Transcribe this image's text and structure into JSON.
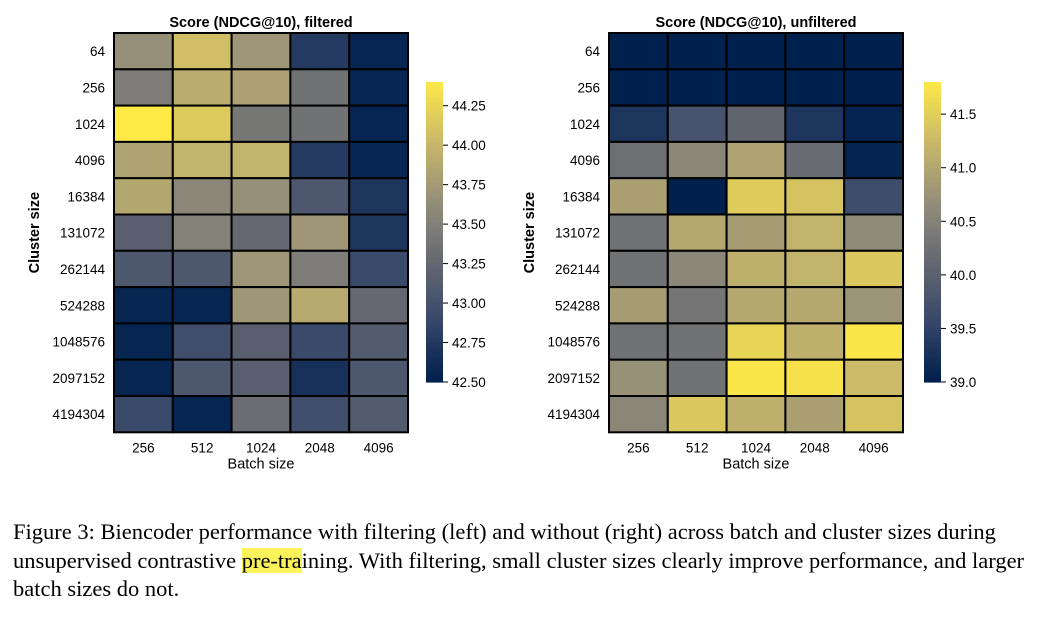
{
  "chart_data": [
    {
      "type": "heatmap",
      "title": "Score (NDCG@10), filtered",
      "xlabel": "Batch size",
      "ylabel": "Cluster size",
      "x_categories": [
        "256",
        "512",
        "1024",
        "2048",
        "4096"
      ],
      "y_categories": [
        "64",
        "256",
        "1024",
        "4096",
        "16384",
        "131072",
        "262144",
        "524288",
        "1048576",
        "2097152",
        "4194304"
      ],
      "values": [
        [
          43.65,
          44.05,
          43.7,
          42.75,
          42.55
        ],
        [
          43.45,
          43.9,
          43.8,
          43.35,
          42.55
        ],
        [
          44.4,
          44.15,
          43.4,
          43.35,
          42.55
        ],
        [
          43.82,
          43.95,
          43.95,
          42.75,
          42.55
        ],
        [
          43.85,
          43.55,
          43.65,
          43.05,
          42.7
        ],
        [
          43.15,
          43.5,
          43.25,
          43.7,
          42.7
        ],
        [
          43.05,
          43.05,
          43.7,
          43.45,
          42.9
        ],
        [
          42.55,
          42.55,
          43.7,
          43.88,
          43.25
        ],
        [
          42.55,
          42.95,
          43.15,
          42.9,
          43.1
        ],
        [
          42.55,
          43.05,
          43.15,
          42.65,
          43.05
        ],
        [
          42.9,
          42.55,
          43.3,
          42.95,
          43.1
        ]
      ],
      "colorbar": {
        "min": 42.5,
        "max": 44.4,
        "ticks": [
          "42.50",
          "42.75",
          "43.00",
          "43.25",
          "43.50",
          "43.75",
          "44.00",
          "44.25"
        ]
      },
      "colormap": "cividis"
    },
    {
      "type": "heatmap",
      "title": "Score (NDCG@10), unfiltered",
      "xlabel": "Batch size",
      "ylabel": "Cluster size",
      "x_categories": [
        "256",
        "512",
        "1024",
        "2048",
        "4096"
      ],
      "y_categories": [
        "64",
        "256",
        "1024",
        "4096",
        "16384",
        "131072",
        "262144",
        "524288",
        "1048576",
        "2097152",
        "4194304"
      ],
      "values": [
        [
          39.0,
          39.0,
          39.0,
          39.0,
          39.0
        ],
        [
          39.0,
          39.0,
          39.0,
          39.0,
          39.0
        ],
        [
          39.3,
          39.75,
          40.05,
          39.3,
          39.05
        ],
        [
          40.2,
          40.55,
          40.95,
          40.15,
          39.05
        ],
        [
          40.9,
          39.0,
          41.45,
          41.35,
          39.65
        ],
        [
          40.25,
          41.0,
          40.85,
          41.15,
          40.6
        ],
        [
          40.25,
          40.55,
          41.1,
          41.15,
          41.4
        ],
        [
          40.85,
          40.3,
          41.0,
          41.0,
          40.75
        ],
        [
          40.25,
          40.25,
          41.55,
          41.1,
          41.75
        ],
        [
          40.7,
          40.25,
          41.75,
          41.7,
          41.25
        ],
        [
          40.55,
          41.4,
          41.1,
          40.9,
          41.35
        ]
      ],
      "colorbar": {
        "min": 39.0,
        "max": 41.8,
        "ticks": [
          "39.0",
          "39.5",
          "40.0",
          "40.5",
          "41.0",
          "41.5"
        ]
      },
      "colormap": "cividis"
    }
  ],
  "caption": {
    "before": "Figure 3: Biencoder performance with filtering (left) and without (right) across batch and cluster sizes during unsupervised contrastive ",
    "highlight": "pre-tra",
    "after": "ining. With filtering, small cluster sizes clearly improve performance, and larger batch sizes do not."
  }
}
